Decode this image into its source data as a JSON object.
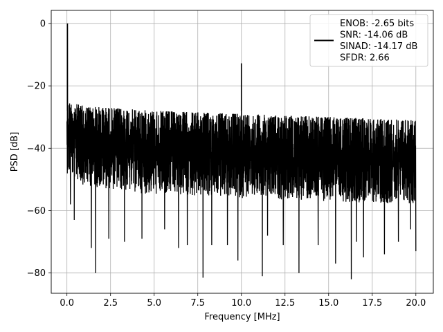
{
  "chart_data": {
    "type": "line",
    "xlabel": "Frequency [MHz]",
    "ylabel": "PSD [dB]",
    "xlim": [
      -0.9,
      21.0
    ],
    "ylim": [
      -86.5,
      4.2
    ],
    "xticks": [
      0.0,
      2.5,
      5.0,
      7.5,
      10.0,
      12.5,
      15.0,
      17.5,
      20.0
    ],
    "xtick_labels": [
      "0.0",
      "2.5",
      "5.0",
      "7.5",
      "10.0",
      "12.5",
      "15.0",
      "17.5",
      "20.0"
    ],
    "yticks": [
      0,
      -20,
      -40,
      -60,
      -80
    ],
    "ytick_labels": [
      "0",
      "−20",
      "−40",
      "−60",
      "−80"
    ],
    "grid": true,
    "legend_position": "top-right",
    "legend_lines": [
      "ENOB: -2.65 bits",
      "SNR: -14.06 dB",
      "SINAD: -14.17 dB",
      "SFDR: 2.66"
    ],
    "series": [
      {
        "color": "#000000",
        "x_range": [
          0.0,
          20.0
        ],
        "noise_band_upper": [
          [
            0.0,
            -25
          ],
          [
            1.0,
            -26.5
          ],
          [
            5.0,
            -28
          ],
          [
            10.0,
            -29
          ],
          [
            15.0,
            -30
          ],
          [
            20.0,
            -31
          ]
        ],
        "noise_band_lower": [
          [
            0.0,
            -48
          ],
          [
            1.0,
            -52
          ],
          [
            5.0,
            -55
          ],
          [
            10.0,
            -56
          ],
          [
            15.0,
            -57
          ],
          [
            20.0,
            -58
          ]
        ],
        "spikes": [
          {
            "x": 0.03,
            "y": 0.0
          },
          {
            "x": 10.0,
            "y": -12.8
          }
        ],
        "dips": [
          {
            "x": 0.2,
            "y": -58
          },
          {
            "x": 0.42,
            "y": -63
          },
          {
            "x": 1.4,
            "y": -72
          },
          {
            "x": 1.65,
            "y": -80
          },
          {
            "x": 2.4,
            "y": -69
          },
          {
            "x": 3.3,
            "y": -70
          },
          {
            "x": 4.3,
            "y": -69
          },
          {
            "x": 5.6,
            "y": -66
          },
          {
            "x": 6.4,
            "y": -72
          },
          {
            "x": 6.9,
            "y": -71
          },
          {
            "x": 7.8,
            "y": -81.5
          },
          {
            "x": 8.3,
            "y": -71
          },
          {
            "x": 9.2,
            "y": -71
          },
          {
            "x": 9.8,
            "y": -76
          },
          {
            "x": 11.2,
            "y": -81
          },
          {
            "x": 11.5,
            "y": -68
          },
          {
            "x": 12.4,
            "y": -71
          },
          {
            "x": 13.3,
            "y": -80
          },
          {
            "x": 14.4,
            "y": -71
          },
          {
            "x": 15.4,
            "y": -77
          },
          {
            "x": 16.3,
            "y": -82
          },
          {
            "x": 16.6,
            "y": -70
          },
          {
            "x": 17.0,
            "y": -75
          },
          {
            "x": 18.2,
            "y": -74
          },
          {
            "x": 19.0,
            "y": -70
          },
          {
            "x": 19.7,
            "y": -66
          },
          {
            "x": 20.0,
            "y": -73
          }
        ]
      }
    ]
  }
}
